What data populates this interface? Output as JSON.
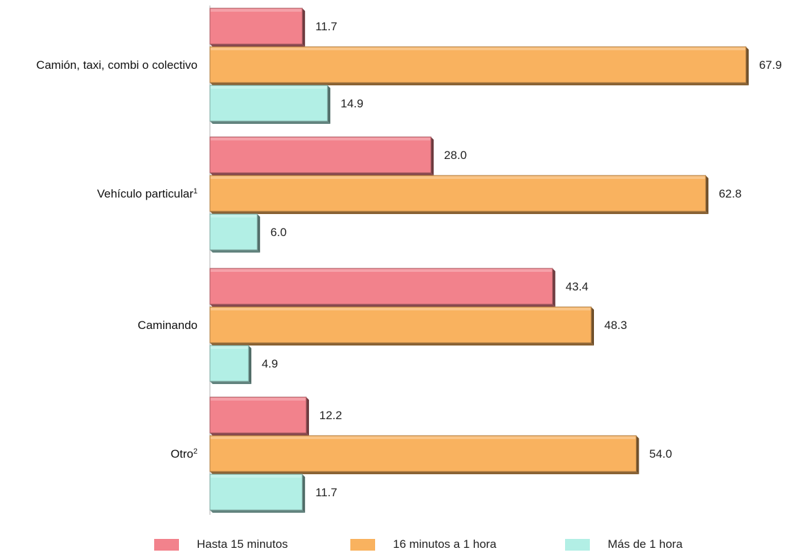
{
  "chart_data": {
    "type": "bar",
    "orientation": "horizontal",
    "categories": [
      {
        "label": "Camión, taxi, combi o colectivo",
        "sup": ""
      },
      {
        "label": "Vehículo particular",
        "sup": "1"
      },
      {
        "label": "Caminando",
        "sup": ""
      },
      {
        "label": "Otro",
        "sup": "2"
      }
    ],
    "series": [
      {
        "name": "Hasta 15 minutos",
        "color": "#F2828C",
        "values": [
          11.7,
          28.0,
          43.4,
          12.2
        ]
      },
      {
        "name": "16 minutos a 1 hora",
        "color": "#F9B25F",
        "values": [
          67.9,
          62.8,
          48.3,
          54.0
        ]
      },
      {
        "name": "Más de 1 hora",
        "color": "#B2EFE5",
        "values": [
          14.9,
          6.0,
          4.9,
          11.7
        ]
      }
    ],
    "value_labels": [
      [
        "11.7",
        "28.0",
        "43.4",
        "12.2"
      ],
      [
        "67.9",
        "62.8",
        "48.3",
        "54.0"
      ],
      [
        "14.9",
        "6.0",
        "4.9",
        "11.7"
      ]
    ],
    "xlim": [
      0,
      70
    ],
    "grid": false,
    "legend": "bottom"
  }
}
